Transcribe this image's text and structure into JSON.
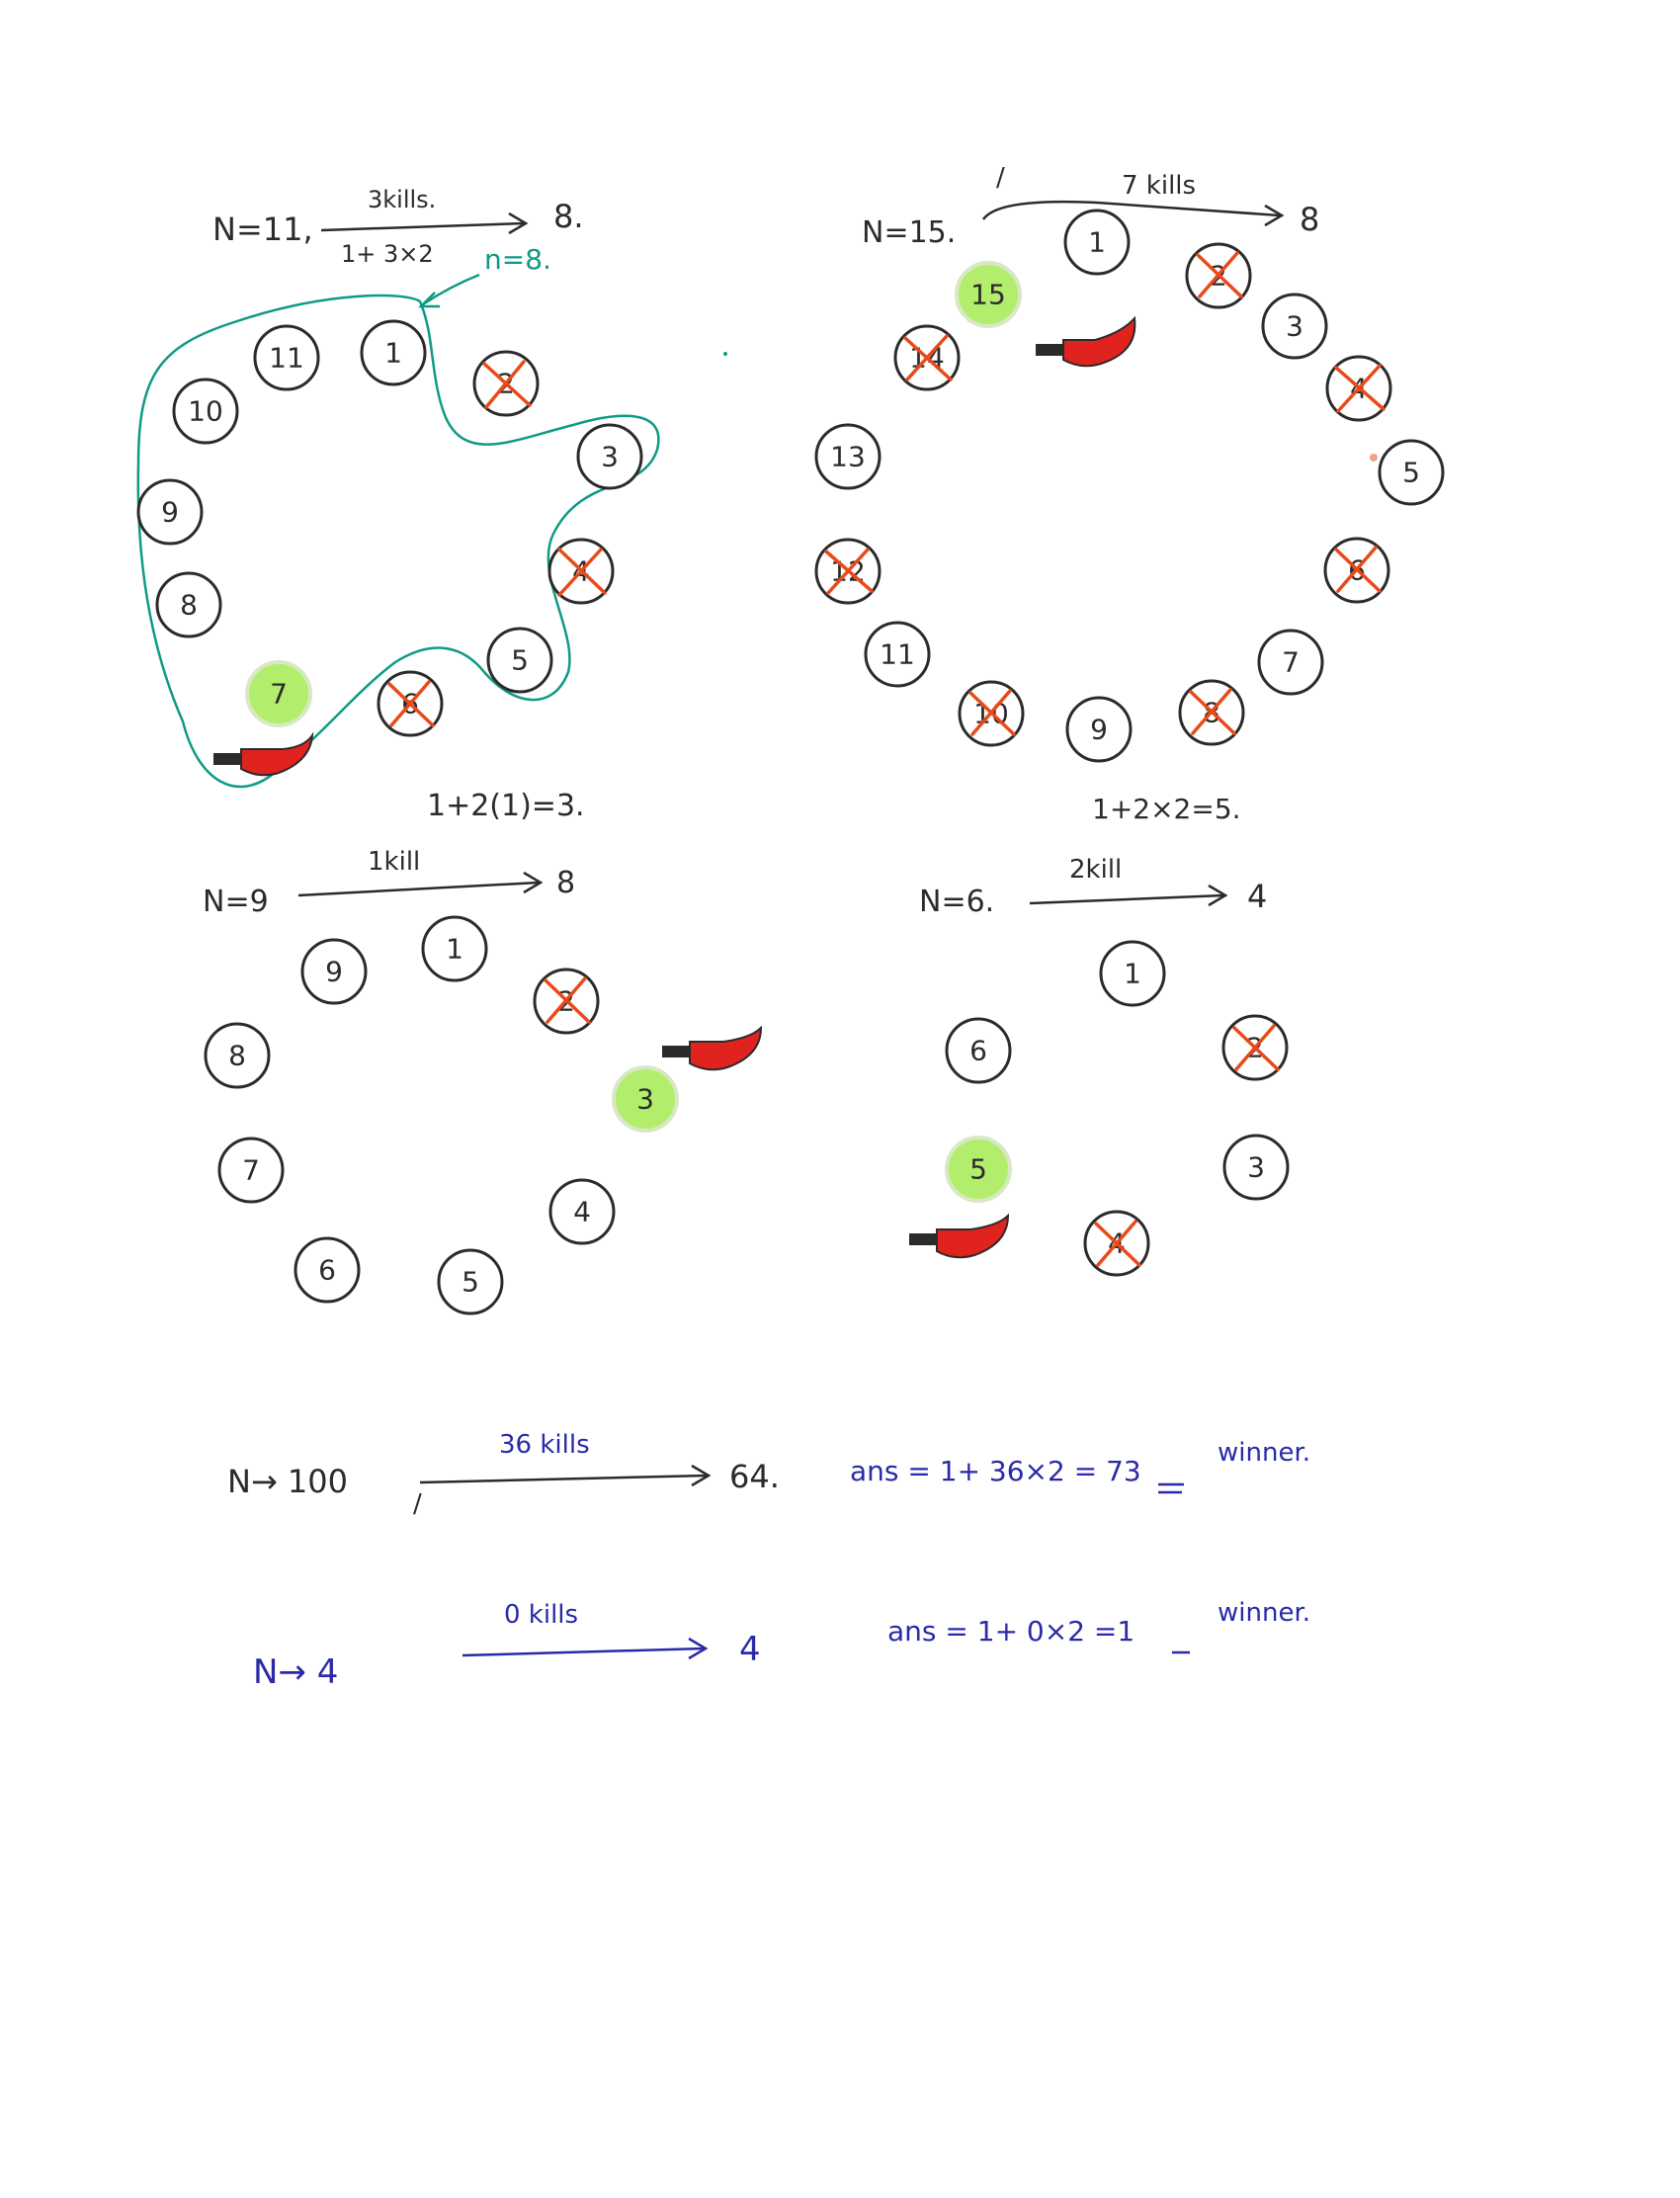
{
  "colors": {
    "ink": "#2b2b2b",
    "teal": "#0f9a86",
    "blue": "#2a2aa8",
    "cross": "#e84a1a",
    "winner": "#b2ee6c",
    "knife": "#e0231f"
  },
  "diagrams": [
    {
      "id": "n11",
      "n_label": "N=11,",
      "arrow_top": "3kills.",
      "arrow_bottom": "1+ 3×2",
      "result": "8.",
      "extra": "n=8.",
      "winner": "7",
      "nodes": [
        {
          "label": "1",
          "killed": false
        },
        {
          "label": "2",
          "killed": true
        },
        {
          "label": "3",
          "killed": false
        },
        {
          "label": "4",
          "killed": true
        },
        {
          "label": "5",
          "killed": false
        },
        {
          "label": "6",
          "killed": true
        },
        {
          "label": "7",
          "killed": false,
          "winner": true
        },
        {
          "label": "8",
          "killed": false
        },
        {
          "label": "9",
          "killed": false
        },
        {
          "label": "10",
          "killed": false
        },
        {
          "label": "11",
          "killed": false
        }
      ]
    },
    {
      "id": "n15",
      "n_label": "N=15.",
      "arrow_top": "7 kills",
      "result": "8",
      "tick": "/",
      "winner": "15",
      "nodes": [
        {
          "label": "1",
          "killed": false
        },
        {
          "label": "2",
          "killed": true
        },
        {
          "label": "3",
          "killed": false
        },
        {
          "label": "4",
          "killed": true
        },
        {
          "label": "5",
          "killed": false
        },
        {
          "label": "6",
          "killed": true
        },
        {
          "label": "7",
          "killed": false
        },
        {
          "label": "8",
          "killed": true
        },
        {
          "label": "9",
          "killed": false
        },
        {
          "label": "10",
          "killed": true
        },
        {
          "label": "11",
          "killed": false
        },
        {
          "label": "12",
          "killed": true
        },
        {
          "label": "13",
          "killed": false
        },
        {
          "label": "14",
          "killed": true
        },
        {
          "label": "15",
          "killed": false,
          "winner": true
        }
      ]
    },
    {
      "id": "n9",
      "n_label": "N=9",
      "calc": "1+2(1)=3.",
      "arrow_top": "1kill",
      "result": "8",
      "winner": "3",
      "nodes": [
        {
          "label": "1",
          "killed": false
        },
        {
          "label": "2",
          "killed": true
        },
        {
          "label": "3",
          "killed": false,
          "winner": true
        },
        {
          "label": "4",
          "killed": false
        },
        {
          "label": "5",
          "killed": false
        },
        {
          "label": "6",
          "killed": false
        },
        {
          "label": "7",
          "killed": false
        },
        {
          "label": "8",
          "killed": false
        },
        {
          "label": "9",
          "killed": false
        }
      ]
    },
    {
      "id": "n6",
      "n_label": "N=6.",
      "calc": "1+2×2=5.",
      "arrow_top": "2kill",
      "result": "4",
      "winner": "5",
      "nodes": [
        {
          "label": "1",
          "killed": false
        },
        {
          "label": "2",
          "killed": true
        },
        {
          "label": "3",
          "killed": false
        },
        {
          "label": "4",
          "killed": true
        },
        {
          "label": "5",
          "killed": false,
          "winner": true
        },
        {
          "label": "6",
          "killed": false
        }
      ]
    }
  ],
  "summary": [
    {
      "n_label": "N→ 100",
      "tick": "/",
      "kills": "36 kills",
      "result": "64.",
      "ans": "ans = 1+ 36×2 = 73",
      "ans_value": "73",
      "suffix": "winner."
    },
    {
      "n_label": "N→ 4",
      "kills": "0 kills",
      "result": "4",
      "ans": "ans = 1+ 0×2 =1",
      "ans_value": "1",
      "suffix": "winner."
    }
  ]
}
